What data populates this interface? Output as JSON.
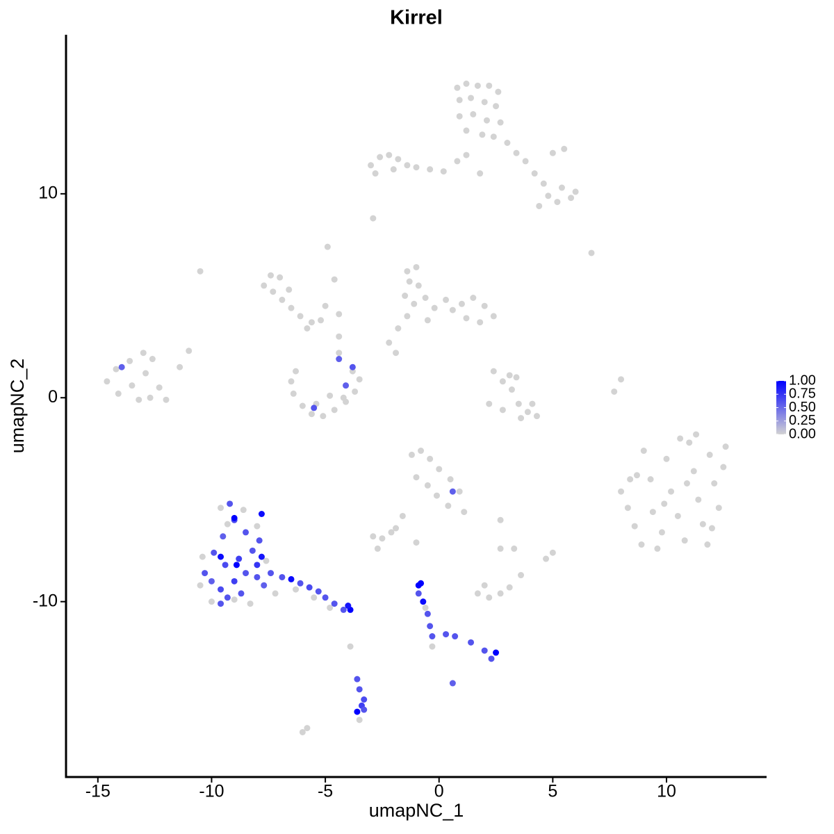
{
  "chart_data": {
    "type": "scatter",
    "title": "Kirrel",
    "x_label": "umapNC_1",
    "y_label": "umapNC_2",
    "xlim": [
      -16.4,
      14.4
    ],
    "ylim": [
      -18.6,
      17.8
    ],
    "xticks": [
      -15,
      -10,
      -5,
      0,
      5,
      10
    ],
    "yticks": [
      -10,
      0,
      10
    ],
    "color_low": "#d3d3d3",
    "color_high": "#0000ff",
    "colorbar_lim": [
      0,
      1
    ],
    "colorbar_ticks": [
      {
        "value": 0,
        "label": "0.00"
      },
      {
        "value": 0.25,
        "label": "0.25"
      },
      {
        "value": 0.5,
        "label": "0.50"
      },
      {
        "value": 0.75,
        "label": "0.75"
      },
      {
        "value": 1,
        "label": "1.00"
      }
    ],
    "series": [
      {
        "x": [
          0.8,
          1.2,
          1.7,
          2.2,
          2.6,
          0.9,
          1.4,
          2.0,
          2.5,
          0.9,
          1.5,
          2.1,
          2.7,
          1.2,
          1.9,
          2.4,
          3.0,
          3.4,
          3.8,
          4.2,
          4.6,
          4.8,
          5.2,
          5.8,
          6.0,
          5.4,
          4.4,
          5.0,
          5.5,
          1.2,
          0.8,
          1.8
        ],
        "y": [
          15.2,
          15.4,
          15.3,
          15.3,
          15.0,
          14.6,
          14.7,
          14.5,
          14.3,
          13.8,
          13.9,
          13.6,
          13.5,
          13.1,
          12.9,
          12.8,
          12.5,
          12.0,
          11.6,
          11.0,
          10.5,
          9.9,
          9.6,
          9.8,
          10.1,
          10.3,
          9.4,
          12.0,
          12.2,
          11.9,
          11.6,
          11.0
        ],
        "values": [
          0,
          0,
          0,
          0,
          0,
          0,
          0,
          0,
          0,
          0,
          0,
          0,
          0,
          0,
          0,
          0,
          0,
          0,
          0,
          0,
          0,
          0,
          0,
          0,
          0,
          0,
          0,
          0,
          0,
          0,
          0,
          0
        ]
      },
      {
        "x": [
          -3.0,
          -2.6,
          -2.2,
          -1.8,
          -1.4,
          -1.0,
          -0.4,
          0.2,
          -2.8,
          -2.0,
          -2.9,
          -7.7,
          -7.4,
          -7.0,
          -7.3,
          -6.9,
          -6.5,
          -6.1,
          -5.6,
          -5.2,
          -5.8,
          -6.6,
          -5.0,
          -4.6,
          -4.9,
          -4.4,
          -4.4,
          -4.4,
          -10.5
        ],
        "y": [
          11.4,
          11.8,
          11.9,
          11.7,
          11.4,
          11.3,
          11.2,
          11.1,
          11.0,
          11.2,
          8.8,
          5.5,
          6.0,
          5.9,
          5.2,
          4.8,
          4.4,
          4.0,
          3.7,
          3.8,
          3.4,
          5.3,
          4.5,
          5.8,
          7.4,
          4.1,
          3.0,
          2.2,
          6.2
        ],
        "values": [
          0,
          0,
          0,
          0,
          0,
          0,
          0,
          0,
          0,
          0,
          0,
          0,
          0,
          0,
          0,
          0,
          0,
          0,
          0,
          0,
          0,
          0,
          0,
          0,
          0,
          0,
          0,
          0,
          0
        ]
      },
      {
        "x": [
          -1.4,
          -1.0,
          -1.3,
          -0.9,
          -1.5,
          -1.1,
          -0.6,
          -0.2,
          0.3,
          0.6,
          1.0,
          1.5,
          2.0,
          2.4,
          1.8,
          1.2,
          -1.4,
          -1.8,
          -2.2,
          -1.9,
          -0.5,
          2.4,
          2.8,
          3.2,
          3.5,
          3.9,
          4.3,
          3.6,
          2.8,
          2.2,
          3.1,
          3.4,
          4.1,
          8.0,
          7.7,
          6.7
        ],
        "y": [
          6.2,
          6.4,
          5.7,
          5.5,
          5.0,
          4.6,
          4.9,
          4.4,
          4.8,
          4.3,
          4.6,
          4.9,
          4.5,
          4.0,
          3.7,
          3.9,
          4.0,
          3.4,
          2.7,
          2.2,
          3.8,
          1.3,
          0.8,
          0.4,
          -0.3,
          -0.7,
          -0.9,
          -1.0,
          -0.6,
          -0.3,
          1.1,
          1.0,
          -0.3,
          0.9,
          0.3,
          7.1
        ],
        "values": [
          0,
          0,
          0,
          0,
          0,
          0,
          0,
          0,
          0,
          0,
          0,
          0,
          0,
          0,
          0,
          0,
          0,
          0,
          0,
          0,
          0,
          0,
          0,
          0,
          0,
          0,
          0,
          0,
          0,
          0,
          0,
          0,
          0,
          0,
          0,
          0
        ]
      },
      {
        "x": [
          -14.6,
          -14.2,
          -13.6,
          -13.0,
          -12.6,
          -12.9,
          -13.5,
          -14.1,
          -12.3,
          -12.0,
          -12.7,
          -11.4,
          -11.0,
          -13.2,
          -13.95,
          -6.5,
          -6.3,
          -6.4,
          -6.0,
          -5.6,
          -5.1,
          -4.6,
          -4.1,
          -3.7,
          -3.5,
          -3.8,
          -4.2,
          -5.4,
          -4.8,
          -5.5,
          -4.1,
          -3.8,
          -4.4
        ],
        "y": [
          0.8,
          1.4,
          1.8,
          2.2,
          1.9,
          1.2,
          0.6,
          0.2,
          0.5,
          -0.1,
          0.0,
          1.5,
          2.3,
          -0.1,
          1.5,
          0.8,
          1.3,
          0.2,
          -0.4,
          -0.8,
          -0.9,
          -0.6,
          -0.2,
          0.3,
          0.9,
          1.3,
          0.0,
          -0.3,
          0.1,
          -0.5,
          0.6,
          1.5,
          1.9
        ],
        "values": [
          0,
          0,
          0,
          0,
          0,
          0,
          0,
          0,
          0,
          0,
          0,
          0,
          0,
          0,
          0.55,
          0,
          0,
          0,
          0,
          0,
          0,
          0,
          0,
          0,
          0,
          0,
          0,
          0,
          0,
          0.6,
          0.55,
          0.6,
          0.55
        ]
      },
      {
        "x": [
          8.0,
          8.3,
          8.6,
          8.9,
          9.3,
          9.4,
          9.8,
          10.0,
          10.2,
          10.5,
          10.8,
          11.0,
          11.2,
          11.4,
          11.6,
          11.9,
          12.1,
          12.3,
          12.5,
          11.8,
          10.6,
          9.6,
          8.7,
          12.6,
          9.0,
          11.3,
          10.9,
          9.9,
          12.0,
          8.4
        ],
        "y": [
          -4.6,
          -5.4,
          -6.3,
          -7.2,
          -4.0,
          -5.6,
          -6.6,
          -3.0,
          -4.6,
          -5.8,
          -7.0,
          -2.2,
          -3.6,
          -5.0,
          -6.2,
          -2.8,
          -4.2,
          -5.4,
          -3.4,
          -7.2,
          -2.0,
          -7.4,
          -3.8,
          -2.4,
          -2.6,
          -1.8,
          -4.2,
          -5.2,
          -6.4,
          -4.0
        ],
        "values": [
          0,
          0,
          0,
          0,
          0,
          0,
          0,
          0,
          0,
          0,
          0,
          0,
          0,
          0,
          0,
          0,
          0,
          0,
          0,
          0,
          0,
          0,
          0,
          0,
          0,
          0,
          0,
          0,
          0,
          0
        ]
      },
      {
        "x": [
          -1.2,
          -0.8,
          -0.4,
          0.0,
          0.5,
          0.9,
          -1.0,
          -0.5,
          -0.1,
          0.4,
          1.1,
          -1.6,
          -1.9,
          0.6,
          -2.9,
          -2.5,
          -2.1,
          -2.7,
          2.7,
          2.7,
          -1.0,
          3.3,
          5.0,
          4.7,
          3.6,
          1.7,
          2.2,
          2.7,
          3.1,
          2.0,
          -3.9,
          -6.0,
          -5.8,
          -3.5
        ],
        "y": [
          -2.8,
          -2.6,
          -3.0,
          -3.5,
          -4.0,
          -4.6,
          -3.9,
          -4.3,
          -4.8,
          -5.3,
          -5.6,
          -5.8,
          -6.4,
          -4.6,
          -6.8,
          -6.9,
          -6.6,
          -7.4,
          -7.4,
          -6.0,
          -7.1,
          -7.4,
          -7.6,
          -7.9,
          -8.7,
          -9.6,
          -9.8,
          -9.6,
          -9.3,
          -9.2,
          -12.2,
          -16.4,
          -16.2,
          -15.8
        ],
        "values": [
          0,
          0,
          0,
          0,
          0,
          0,
          0,
          0,
          0,
          0,
          0,
          0,
          0,
          0.55,
          0,
          0,
          0,
          0,
          0,
          0,
          0,
          0,
          0,
          0,
          0,
          0,
          0,
          0,
          0,
          0,
          0,
          0,
          0,
          0
        ]
      },
      {
        "x": [
          -9.6,
          -8.6,
          -8.0,
          -10.4,
          -10.0,
          -9.0,
          -7.6,
          -7.2,
          -8.3,
          -9.3,
          -10.5,
          -9.2,
          -9.0,
          -8.5,
          -9.5,
          -9.9,
          -9.4,
          -8.8,
          -8.2,
          -7.9,
          -10.3,
          -10.0,
          -9.6,
          -9.0,
          -8.5,
          -8.0,
          -7.7,
          -8.7,
          -9.3,
          -8.0,
          -9.6,
          -7.4,
          -9.0,
          -8.9,
          -9.6,
          -7.8,
          -7.8
        ],
        "y": [
          -5.4,
          -5.5,
          -6.3,
          -7.8,
          -10.0,
          -9.9,
          -8.0,
          -9.6,
          -10.1,
          -6.2,
          -9.2,
          -5.2,
          -6.0,
          -6.6,
          -6.8,
          -7.6,
          -8.2,
          -7.9,
          -7.5,
          -7.0,
          -8.6,
          -9.0,
          -9.4,
          -9.0,
          -8.6,
          -8.8,
          -9.2,
          -9.6,
          -9.8,
          -8.2,
          -10.1,
          -8.6,
          -5.9,
          -8.2,
          -7.8,
          -5.7,
          -7.8
        ],
        "values": [
          0,
          0,
          0,
          0,
          0,
          0,
          0,
          0,
          0,
          0,
          0,
          0.6,
          0.65,
          0.6,
          0.55,
          0.6,
          0.65,
          0.7,
          0.6,
          0.6,
          0.6,
          0.55,
          0.65,
          0.7,
          0.6,
          0.6,
          0.55,
          0.6,
          0.6,
          0.75,
          0.6,
          0.6,
          1,
          1,
          0.95,
          0.95,
          0.9
        ]
      },
      {
        "x": [
          -5.5,
          -4.8,
          -6.3,
          -0.3,
          -0.6,
          -6.9,
          -6.5,
          -6.1,
          -5.7,
          -5.3,
          -5.0,
          -4.6,
          -4.2,
          -3.9,
          -4.0,
          -3.6,
          -3.5,
          -3.3,
          -3.4,
          -3.6,
          -3.3,
          -0.9,
          -0.8,
          -0.9,
          -0.7,
          -0.5,
          -0.4,
          -0.3,
          0.3,
          0.7,
          1.4,
          2.0,
          2.5,
          2.3,
          0.6
        ],
        "y": [
          -9.8,
          -10.3,
          -9.4,
          -12.2,
          -10.3,
          -8.8,
          -8.9,
          -9.1,
          -9.3,
          -9.5,
          -9.8,
          -10.1,
          -10.4,
          -10.4,
          -10.2,
          -13.8,
          -14.3,
          -14.8,
          -15.1,
          -15.4,
          -15.3,
          -9.2,
          -9.1,
          -9.6,
          -10.0,
          -10.6,
          -11.2,
          -11.7,
          -11.6,
          -11.7,
          -12.0,
          -12.4,
          -12.5,
          -12.8,
          -14.0
        ],
        "values": [
          0,
          0,
          0,
          0,
          0,
          0.6,
          0.95,
          0.6,
          0.65,
          0.6,
          0.6,
          0.6,
          0.6,
          1,
          0.9,
          0.6,
          0.6,
          0.65,
          0.7,
          1,
          0.6,
          1,
          1,
          0.6,
          0.95,
          0.6,
          0.6,
          0.6,
          0.6,
          0.6,
          0.6,
          0.6,
          1,
          0.6,
          0.55
        ]
      }
    ]
  }
}
